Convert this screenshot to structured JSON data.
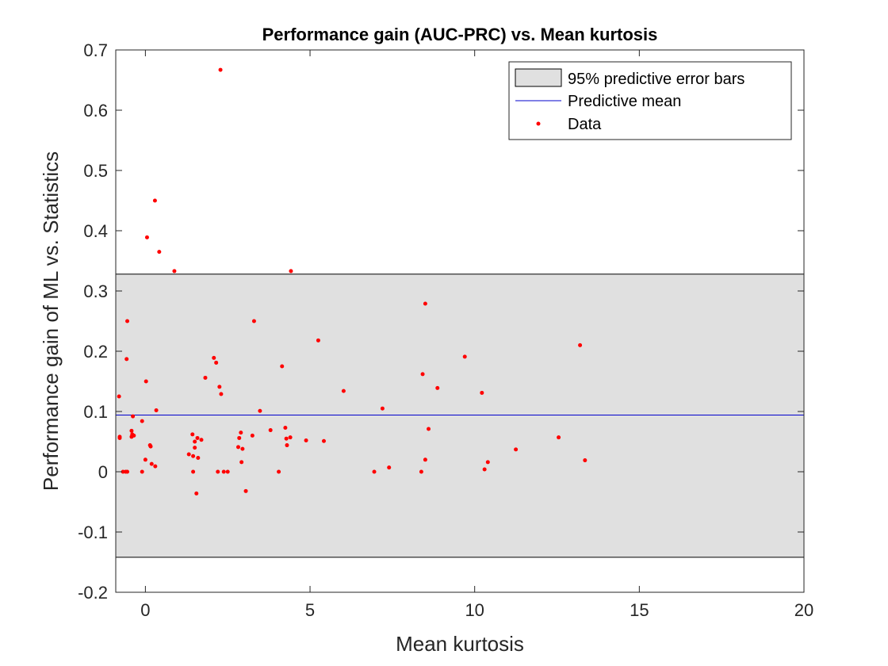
{
  "chart_data": {
    "type": "scatter",
    "title": "Performance gain (AUC-PRC) vs. Mean kurtosis",
    "xlabel": "Mean kurtosis",
    "ylabel": "Performance gain of ML vs. Statistics",
    "xlim": [
      -0.9,
      20
    ],
    "ylim": [
      -0.2,
      0.7
    ],
    "x_ticks": [
      0,
      5,
      10,
      15,
      20
    ],
    "y_ticks": [
      -0.2,
      -0.1,
      0,
      0.1,
      0.2,
      0.3,
      0.4,
      0.5,
      0.6,
      0.7
    ],
    "x_tick_labels": [
      "0",
      "5",
      "10",
      "15",
      "20"
    ],
    "y_tick_labels": [
      "-0.2",
      "-0.1",
      "0",
      "0.1",
      "0.2",
      "0.3",
      "0.4",
      "0.5",
      "0.6",
      "0.7"
    ],
    "grid": false,
    "legend_position": "top-right",
    "error_band": {
      "name": "95% predictive error bars",
      "lower": -0.142,
      "upper": 0.328,
      "fill_color": "#e0e0e0",
      "edge_color": "#000000"
    },
    "mean_line": {
      "name": "Predictive mean",
      "y": 0.094,
      "color": "#0000cc"
    },
    "points_series": {
      "name": "Data",
      "color": "#ff0000",
      "points": [
        [
          2.28,
          0.667
        ],
        [
          0.29,
          0.45
        ],
        [
          0.05,
          0.389
        ],
        [
          0.42,
          0.365
        ],
        [
          0.88,
          0.333
        ],
        [
          4.42,
          0.333
        ],
        [
          8.5,
          0.279
        ],
        [
          -0.55,
          0.25
        ],
        [
          3.3,
          0.25
        ],
        [
          5.25,
          0.218
        ],
        [
          13.2,
          0.21
        ],
        [
          9.7,
          0.191
        ],
        [
          2.08,
          0.189
        ],
        [
          -0.57,
          0.187
        ],
        [
          2.15,
          0.181
        ],
        [
          4.15,
          0.175
        ],
        [
          8.42,
          0.162
        ],
        [
          1.82,
          0.156
        ],
        [
          0.02,
          0.15
        ],
        [
          2.25,
          0.141
        ],
        [
          8.87,
          0.139
        ],
        [
          6.02,
          0.134
        ],
        [
          10.22,
          0.131
        ],
        [
          2.3,
          0.129
        ],
        [
          -0.8,
          0.125
        ],
        [
          7.2,
          0.105
        ],
        [
          0.33,
          0.102
        ],
        [
          3.48,
          0.101
        ],
        [
          -0.38,
          0.092
        ],
        [
          -0.1,
          0.084
        ],
        [
          8.6,
          0.071
        ],
        [
          4.25,
          0.073
        ],
        [
          3.8,
          0.069
        ],
        [
          -0.42,
          0.068
        ],
        [
          2.9,
          0.065
        ],
        [
          -0.4,
          0.062
        ],
        [
          1.43,
          0.062
        ],
        [
          3.25,
          0.06
        ],
        [
          -0.35,
          0.06
        ],
        [
          -0.42,
          0.058
        ],
        [
          -0.78,
          0.058
        ],
        [
          -0.78,
          0.056
        ],
        [
          12.55,
          0.057
        ],
        [
          4.4,
          0.057
        ],
        [
          1.58,
          0.056
        ],
        [
          2.85,
          0.056
        ],
        [
          4.28,
          0.055
        ],
        [
          1.7,
          0.053
        ],
        [
          4.88,
          0.052
        ],
        [
          5.42,
          0.051
        ],
        [
          1.5,
          0.05
        ],
        [
          0.14,
          0.044
        ],
        [
          4.3,
          0.044
        ],
        [
          0.16,
          0.042
        ],
        [
          2.82,
          0.041
        ],
        [
          1.5,
          0.04
        ],
        [
          2.95,
          0.038
        ],
        [
          11.25,
          0.037
        ],
        [
          1.32,
          0.029
        ],
        [
          1.45,
          0.026
        ],
        [
          1.6,
          0.023
        ],
        [
          0.0,
          0.02
        ],
        [
          8.5,
          0.02
        ],
        [
          13.35,
          0.019
        ],
        [
          10.4,
          0.016
        ],
        [
          2.92,
          0.016
        ],
        [
          0.19,
          0.013
        ],
        [
          0.3,
          0.009
        ],
        [
          7.4,
          0.007
        ],
        [
          10.3,
          0.004
        ],
        [
          -0.68,
          0.0
        ],
        [
          -0.6,
          0.0
        ],
        [
          -0.55,
          0.0
        ],
        [
          -0.1,
          0.0
        ],
        [
          1.45,
          0.0
        ],
        [
          2.2,
          0.0
        ],
        [
          2.38,
          0.0
        ],
        [
          2.5,
          0.0
        ],
        [
          4.05,
          0.0
        ],
        [
          6.95,
          0.0
        ],
        [
          8.38,
          0.0
        ],
        [
          3.05,
          -0.032
        ],
        [
          1.55,
          -0.036
        ]
      ]
    },
    "legend": [
      {
        "label": "95% predictive error bars",
        "kind": "patch"
      },
      {
        "label": "Predictive mean",
        "kind": "line"
      },
      {
        "label": "Data",
        "kind": "marker"
      }
    ]
  }
}
